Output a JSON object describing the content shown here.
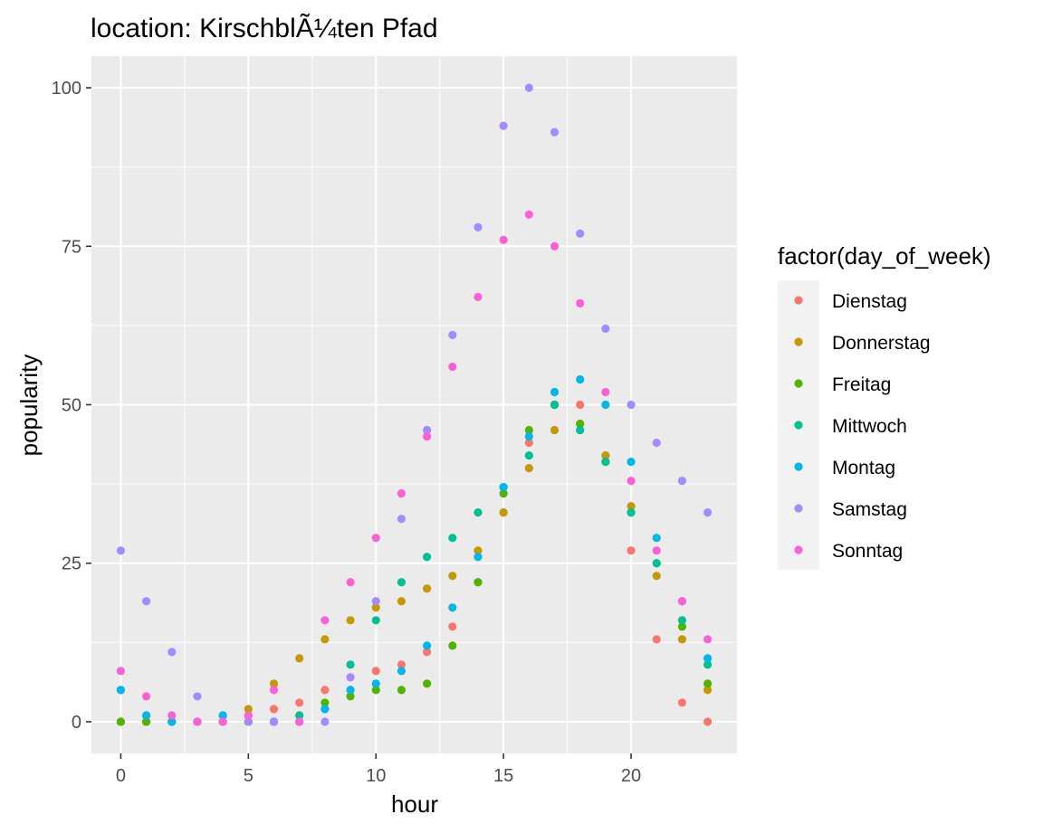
{
  "chart_data": {
    "type": "scatter",
    "title": "location: KirschblÃ¼ten Pfad",
    "xlabel": "hour",
    "ylabel": "popularity",
    "xlim": [
      -1.15,
      24.15
    ],
    "ylim": [
      -5,
      105
    ],
    "xticks": [
      0,
      5,
      10,
      15,
      20
    ],
    "yticks": [
      0,
      25,
      50,
      75,
      100
    ],
    "grid": true,
    "legend": {
      "title": "factor(day_of_week)",
      "position": "right"
    },
    "series": [
      {
        "name": "Dienstag",
        "color": "#F8766D",
        "points": [
          [
            0,
            0
          ],
          [
            1,
            0
          ],
          [
            2,
            0
          ],
          [
            3,
            0
          ],
          [
            4,
            0
          ],
          [
            5,
            1
          ],
          [
            6,
            2
          ],
          [
            7,
            3
          ],
          [
            8,
            5
          ],
          [
            9,
            5
          ],
          [
            10,
            8
          ],
          [
            11,
            9
          ],
          [
            12,
            11
          ],
          [
            13,
            15
          ],
          [
            14,
            22
          ],
          [
            15,
            33
          ],
          [
            16,
            44
          ],
          [
            17,
            50
          ],
          [
            18,
            50
          ],
          [
            19,
            42
          ],
          [
            20,
            27
          ],
          [
            21,
            13
          ],
          [
            22,
            3
          ],
          [
            23,
            0
          ]
        ]
      },
      {
        "name": "Donnerstag",
        "color": "#C49A00",
        "points": [
          [
            0,
            0
          ],
          [
            1,
            0
          ],
          [
            2,
            0
          ],
          [
            3,
            0
          ],
          [
            4,
            0
          ],
          [
            5,
            2
          ],
          [
            6,
            6
          ],
          [
            7,
            10
          ],
          [
            8,
            13
          ],
          [
            9,
            16
          ],
          [
            10,
            18
          ],
          [
            11,
            19
          ],
          [
            12,
            21
          ],
          [
            13,
            23
          ],
          [
            14,
            27
          ],
          [
            15,
            33
          ],
          [
            16,
            40
          ],
          [
            17,
            46
          ],
          [
            18,
            47
          ],
          [
            19,
            42
          ],
          [
            20,
            34
          ],
          [
            21,
            23
          ],
          [
            22,
            13
          ],
          [
            23,
            5
          ]
        ]
      },
      {
        "name": "Freitag",
        "color": "#53B400",
        "points": [
          [
            0,
            0
          ],
          [
            1,
            0
          ],
          [
            2,
            0
          ],
          [
            3,
            0
          ],
          [
            4,
            0
          ],
          [
            5,
            0
          ],
          [
            6,
            0
          ],
          [
            7,
            1
          ],
          [
            8,
            3
          ],
          [
            9,
            4
          ],
          [
            10,
            5
          ],
          [
            11,
            5
          ],
          [
            12,
            6
          ],
          [
            13,
            12
          ],
          [
            14,
            22
          ],
          [
            15,
            36
          ],
          [
            16,
            46
          ],
          [
            17,
            50
          ],
          [
            18,
            47
          ],
          [
            19,
            41
          ],
          [
            20,
            33
          ],
          [
            21,
            25
          ],
          [
            22,
            15
          ],
          [
            23,
            6
          ]
        ]
      },
      {
        "name": "Mittwoch",
        "color": "#00C094",
        "points": [
          [
            0,
            5
          ],
          [
            1,
            1
          ],
          [
            2,
            0
          ],
          [
            3,
            0
          ],
          [
            4,
            1
          ],
          [
            5,
            0
          ],
          [
            6,
            0
          ],
          [
            7,
            1
          ],
          [
            8,
            2
          ],
          [
            9,
            9
          ],
          [
            10,
            16
          ],
          [
            11,
            22
          ],
          [
            12,
            26
          ],
          [
            13,
            29
          ],
          [
            14,
            33
          ],
          [
            15,
            37
          ],
          [
            16,
            42
          ],
          [
            17,
            50
          ],
          [
            18,
            46
          ],
          [
            19,
            41
          ],
          [
            20,
            33
          ],
          [
            21,
            25
          ],
          [
            22,
            16
          ],
          [
            23,
            9
          ]
        ]
      },
      {
        "name": "Montag",
        "color": "#00B6EB",
        "points": [
          [
            0,
            5
          ],
          [
            1,
            1
          ],
          [
            2,
            0
          ],
          [
            3,
            0
          ],
          [
            4,
            1
          ],
          [
            5,
            0
          ],
          [
            6,
            0
          ],
          [
            7,
            0
          ],
          [
            8,
            2
          ],
          [
            9,
            5
          ],
          [
            10,
            6
          ],
          [
            11,
            8
          ],
          [
            12,
            12
          ],
          [
            13,
            18
          ],
          [
            14,
            26
          ],
          [
            15,
            37
          ],
          [
            16,
            45
          ],
          [
            17,
            52
          ],
          [
            18,
            54
          ],
          [
            19,
            50
          ],
          [
            20,
            41
          ],
          [
            21,
            29
          ],
          [
            22,
            19
          ],
          [
            23,
            10
          ]
        ]
      },
      {
        "name": "Samstag",
        "color": "#A58AFF",
        "points": [
          [
            0,
            27
          ],
          [
            1,
            19
          ],
          [
            2,
            11
          ],
          [
            3,
            4
          ],
          [
            4,
            0
          ],
          [
            5,
            0
          ],
          [
            6,
            0
          ],
          [
            7,
            0
          ],
          [
            8,
            0
          ],
          [
            9,
            7
          ],
          [
            10,
            19
          ],
          [
            11,
            32
          ],
          [
            12,
            46
          ],
          [
            13,
            61
          ],
          [
            14,
            78
          ],
          [
            15,
            94
          ],
          [
            16,
            100
          ],
          [
            17,
            93
          ],
          [
            18,
            77
          ],
          [
            19,
            62
          ],
          [
            20,
            50
          ],
          [
            21,
            44
          ],
          [
            22,
            38
          ],
          [
            23,
            33
          ]
        ]
      },
      {
        "name": "Sonntag",
        "color": "#FB61D7",
        "points": [
          [
            0,
            8
          ],
          [
            1,
            4
          ],
          [
            2,
            1
          ],
          [
            3,
            0
          ],
          [
            4,
            0
          ],
          [
            5,
            1
          ],
          [
            6,
            5
          ],
          [
            7,
            0
          ],
          [
            8,
            16
          ],
          [
            9,
            22
          ],
          [
            10,
            29
          ],
          [
            11,
            36
          ],
          [
            12,
            45
          ],
          [
            13,
            56
          ],
          [
            14,
            67
          ],
          [
            15,
            76
          ],
          [
            16,
            80
          ],
          [
            17,
            75
          ],
          [
            18,
            66
          ],
          [
            19,
            52
          ],
          [
            20,
            38
          ],
          [
            21,
            27
          ],
          [
            22,
            19
          ],
          [
            23,
            13
          ]
        ]
      }
    ]
  }
}
